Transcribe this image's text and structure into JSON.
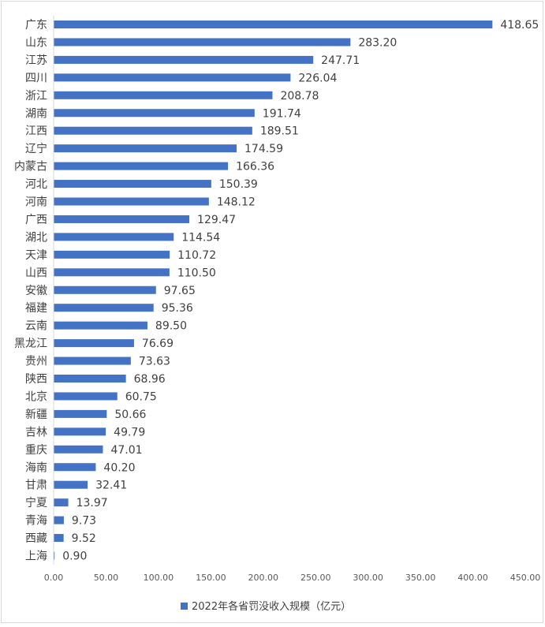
{
  "chart_data": {
    "type": "bar",
    "orientation": "horizontal",
    "categories": [
      "广东",
      "山东",
      "江苏",
      "四川",
      "浙江",
      "湖南",
      "江西",
      "辽宁",
      "内蒙古",
      "河北",
      "河南",
      "广西",
      "湖北",
      "天津",
      "山西",
      "安徽",
      "福建",
      "云南",
      "黑龙江",
      "贵州",
      "陕西",
      "北京",
      "新疆",
      "吉林",
      "重庆",
      "海南",
      "甘肃",
      "宁夏",
      "青海",
      "西藏",
      "上海"
    ],
    "category_labels": [
      "广东",
      "山东",
      "江苏",
      "四川",
      "浙江",
      "湖南",
      "江西",
      "辽宁",
      "内蒙古",
      "河北",
      "河南",
      "广西",
      "湖北",
      "天津",
      "山西",
      "安徽",
      "福建",
      "云南",
      "黑龙江",
      "贵州",
      "陕西",
      "北京",
      "新疆",
      "吉林",
      "重庆",
      "海南",
      "甘肃",
      "宁夏",
      "青海",
      "西藏",
      "上海"
    ],
    "series": [
      {
        "name": "2022年各省罚没收入规模（亿元）",
        "values": [
          418.65,
          283.2,
          247.71,
          226.04,
          208.78,
          191.74,
          189.51,
          174.59,
          166.36,
          150.39,
          148.12,
          129.47,
          114.54,
          110.72,
          110.5,
          97.65,
          95.36,
          89.5,
          76.69,
          73.63,
          68.96,
          60.75,
          50.66,
          49.79,
          47.01,
          40.2,
          32.41,
          13.97,
          9.73,
          9.52,
          0.9
        ],
        "labels": [
          "418.65",
          "283.20",
          "247.71",
          "226.04",
          "208.78",
          "191.74",
          "189.51",
          "174.59",
          "166.36",
          "150.39",
          "148.12",
          "129.47",
          "114.54",
          "110.72",
          "110.50",
          "97.65",
          "95.36",
          "89.50",
          "76.69",
          "73.63",
          "68.96",
          "60.75",
          "50.66",
          "49.79",
          "47.01",
          "40.20",
          "32.41",
          "13.97",
          "9.73",
          "9.52",
          "0.90"
        ]
      }
    ],
    "xlim": [
      0,
      450
    ],
    "x_ticks": [
      0,
      50,
      100,
      150,
      200,
      250,
      300,
      350,
      400,
      450
    ],
    "x_tick_labels": [
      "0.00",
      "50.00",
      "100.00",
      "150.00",
      "200.00",
      "250.00",
      "300.00",
      "350.00",
      "400.00",
      "450.00"
    ],
    "grid": false,
    "legend_position": "bottom",
    "colors": {
      "bar": "#4472C4",
      "axis": "#d9d9d9",
      "text": "#404040",
      "tick_text": "#595959"
    }
  }
}
